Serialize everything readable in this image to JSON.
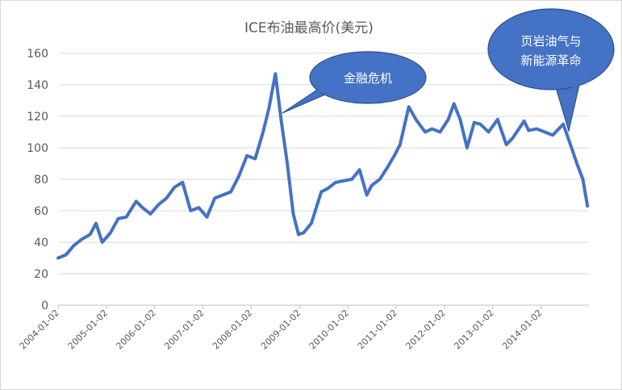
{
  "chart_data": {
    "type": "line",
    "title": "ICE布油最高价(美元)",
    "xlabel": "",
    "ylabel": "",
    "ylim": [
      0,
      160
    ],
    "yticks": [
      0,
      20,
      40,
      60,
      80,
      100,
      120,
      140,
      160
    ],
    "xticks": [
      "2004-01-02",
      "2005-01-02",
      "2006-01-02",
      "2007-01-02",
      "2008-01-02",
      "2009-01-02",
      "2010-01-02",
      "2011-01-02",
      "2012-01-02",
      "2013-01-02",
      "2014-01-02"
    ],
    "grid": true,
    "legend": "none",
    "series_color": "#4472C4",
    "series": [
      {
        "x": [
          "2004-01-02",
          "2004-03-01",
          "2004-05-01",
          "2004-07-01",
          "2004-09-01",
          "2004-10-15",
          "2004-12-01",
          "2005-02-01",
          "2005-04-01",
          "2005-06-01",
          "2005-08-15",
          "2005-10-01",
          "2005-12-01",
          "2006-02-01",
          "2006-04-01",
          "2006-06-01",
          "2006-08-01",
          "2006-10-01",
          "2006-12-01",
          "2007-02-01",
          "2007-04-01",
          "2007-06-01",
          "2007-08-01",
          "2007-10-01",
          "2007-12-01",
          "2008-02-01",
          "2008-04-01",
          "2008-05-15",
          "2008-07-03",
          "2008-08-15",
          "2008-10-01",
          "2008-11-15",
          "2008-12-25",
          "2009-02-01",
          "2009-04-01",
          "2009-06-15",
          "2009-08-01",
          "2009-10-01",
          "2009-12-01",
          "2010-02-01",
          "2010-04-01",
          "2010-05-25",
          "2010-07-01",
          "2010-09-01",
          "2010-11-01",
          "2010-12-20",
          "2011-02-01",
          "2011-04-08",
          "2011-06-01",
          "2011-08-10",
          "2011-10-01",
          "2011-12-01",
          "2012-02-01",
          "2012-03-15",
          "2012-05-01",
          "2012-06-22",
          "2012-08-15",
          "2012-10-01",
          "2012-12-01",
          "2013-02-08",
          "2013-04-15",
          "2013-06-01",
          "2013-08-28",
          "2013-10-01",
          "2013-12-01",
          "2014-02-01",
          "2014-04-01",
          "2014-06-20",
          "2014-08-01",
          "2014-10-01",
          "2014-11-15",
          "2014-12-20"
        ],
        "values": [
          30,
          32,
          38,
          42,
          45,
          52,
          40,
          46,
          55,
          56,
          66,
          62,
          58,
          64,
          68,
          75,
          78,
          60,
          62,
          56,
          68,
          70,
          72,
          82,
          95,
          93,
          110,
          125,
          147,
          118,
          90,
          58,
          45,
          46,
          52,
          72,
          74,
          78,
          79,
          80,
          86,
          70,
          76,
          80,
          88,
          95,
          102,
          126,
          118,
          110,
          112,
          110,
          118,
          128,
          118,
          100,
          116,
          115,
          110,
          118,
          102,
          106,
          117,
          111,
          112,
          110,
          108,
          115,
          105,
          90,
          80,
          63
        ]
      }
    ],
    "annotations": [
      {
        "text": "金融危机"
      },
      {
        "lines": [
          "页岩油气与",
          "新能源革命"
        ]
      }
    ]
  }
}
